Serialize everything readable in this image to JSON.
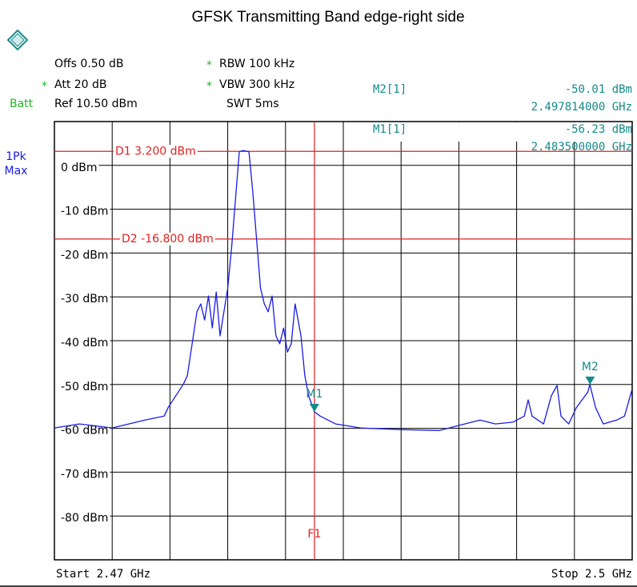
{
  "chart_data": {
    "type": "line",
    "title": "GFSK Transmitting Band edge-right side",
    "header": [
      {
        "text": "Offs 0.50 dB"
      },
      {
        "flag": "*",
        "text": "RBW 100 kHz"
      },
      {
        "flag": "*",
        "text": "Att  20 dB"
      },
      {
        "flag": "*",
        "text": "VBW 300 kHz"
      },
      {
        "text": "Batt"
      },
      {
        "text": "Ref  10.50 dBm"
      },
      {
        "text": "SWT 5ms"
      }
    ],
    "trace_label": [
      "1Pk",
      "Max"
    ],
    "x": [
      2.47,
      2.4713,
      2.473,
      2.4747,
      2.4757,
      2.4759,
      2.4767,
      2.4769,
      2.4774,
      2.4776,
      2.4778,
      2.478,
      2.4782,
      2.4784,
      2.4786,
      2.4788,
      2.479,
      2.4792,
      2.4794,
      2.4796,
      2.4798,
      2.4801,
      2.4803,
      2.4805,
      2.4807,
      2.4809,
      2.4811,
      2.4813,
      2.4815,
      2.4817,
      2.4819,
      2.4821,
      2.4823,
      2.4825,
      2.4828,
      2.483,
      2.4832,
      2.4835,
      2.4838,
      2.4842,
      2.4846,
      2.4859,
      2.488,
      2.49,
      2.4913,
      2.4921,
      2.4929,
      2.4938,
      2.4944,
      2.4946,
      2.4948,
      2.4954,
      2.4958,
      2.4961,
      2.4963,
      2.4967,
      2.4971,
      2.4977,
      2.4978,
      2.4981,
      2.4985,
      2.4992,
      2.4996,
      2.5
    ],
    "series": [
      {
        "color": "#1a1ae6",
        "values": [
          -59.9,
          -59.0,
          -59.9,
          -58.1,
          -57.2,
          -55.3,
          -49.9,
          -48.0,
          -33.4,
          -31.6,
          -35.3,
          -29.8,
          -37.1,
          -28.9,
          -38.9,
          -33.4,
          -28.0,
          -18.8,
          -7.9,
          3.1,
          3.4,
          3.1,
          -6.1,
          -17.0,
          -28.0,
          -31.6,
          -33.4,
          -29.8,
          -38.9,
          -40.7,
          -37.1,
          -42.6,
          -40.7,
          -31.6,
          -38.9,
          -48.0,
          -52.6,
          -56.23,
          -57.2,
          -58.1,
          -59.0,
          -59.9,
          -60.3,
          -60.5,
          -59.0,
          -58.1,
          -59.0,
          -58.6,
          -57.2,
          -53.5,
          -57.2,
          -59.0,
          -52.6,
          -50.2,
          -57.2,
          -59.0,
          -55.3,
          -51.7,
          -50.01,
          -55.3,
          -59.0,
          -58.1,
          -57.2,
          -51.0
        ]
      }
    ],
    "xlim": [
      2.47,
      2.5
    ],
    "ylim": [
      -90,
      10
    ],
    "yticks": [
      {
        "value": 0,
        "label": "0 dBm"
      },
      {
        "value": -10,
        "label": "-10 dBm"
      },
      {
        "value": -20,
        "label": "-20 dBm"
      },
      {
        "value": -30,
        "label": "-30 dBm"
      },
      {
        "value": -40,
        "label": "-40 dBm"
      },
      {
        "value": -50,
        "label": "-50 dBm"
      },
      {
        "value": -60,
        "label": "-60 dBm"
      },
      {
        "value": -70,
        "label": "-70 dBm"
      },
      {
        "value": -80,
        "label": "-80 dBm"
      }
    ],
    "grid": true,
    "x_start_label": "Start 2.47 GHz",
    "x_stop_label": "Stop 2.5 GHz",
    "display_lines": [
      {
        "label": "D1  3.200 dBm",
        "value": 3.2,
        "color": "#e02020"
      },
      {
        "label": "D2  -16.800 dBm",
        "value": -16.8,
        "color": "#e02020"
      }
    ],
    "frequency_lines": [
      {
        "label": "F1",
        "x": 2.4835,
        "color": "#e02020"
      }
    ],
    "marker_color": "#138a8a",
    "markers": [
      {
        "name": "M2",
        "table_name": "M2[1]",
        "x": 2.497814,
        "value": -50.01,
        "value_label": "-50.01 dBm",
        "x_label": "2.497814000 GHz"
      },
      {
        "name": "M1",
        "table_name": "M1[1]",
        "x": 2.4835,
        "value": -56.23,
        "value_label": "-56.23 dBm",
        "x_label": "2.483500000 GHz"
      }
    ]
  }
}
